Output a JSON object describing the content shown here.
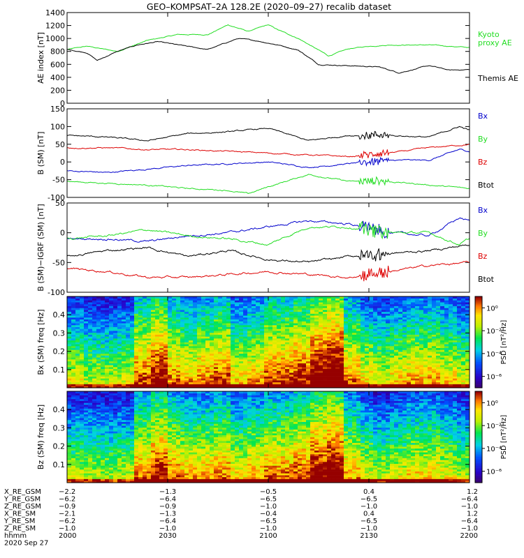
{
  "title": "GEO–KOMPSAT–2A 128.2E (2020–09–27) recalib dataset",
  "time_axis": {
    "ticks": [
      "2000",
      "2030",
      "2100",
      "2130",
      "2200"
    ],
    "hours": [
      20.0,
      20.5,
      21.0,
      21.5,
      22.0
    ],
    "range_hours": [
      20.0,
      22.0
    ],
    "date_label": "2020 Sep 27",
    "hhmm_label": "hhmm"
  },
  "ephemeris": [
    {
      "label": "X_RE_GSM",
      "values": [
        "−2.2",
        "−1.3",
        "−0.5",
        "0.4",
        "1.2"
      ]
    },
    {
      "label": "Y_RE_GSM",
      "values": [
        "−6.2",
        "−6.4",
        "−6.5",
        "−6.5",
        "−6.4"
      ]
    },
    {
      "label": "Z_RE_GSM",
      "values": [
        "−0.9",
        "−0.9",
        "−1.0",
        "−1.0",
        "−1.0"
      ]
    },
    {
      "label": "X_RE_SM",
      "values": [
        "−2.1",
        "−1.3",
        "−0.4",
        "0.4",
        "1.2"
      ]
    },
    {
      "label": "Y_RE_SM",
      "values": [
        "−6.2",
        "−6.4",
        "−6.5",
        "−6.5",
        "−6.4"
      ]
    },
    {
      "label": "Z_RE_SM",
      "values": [
        "−1.0",
        "−1.0",
        "−1.0",
        "−1.0",
        "−1.0"
      ]
    }
  ],
  "colors": {
    "black": "#000000",
    "red": "#dd0000",
    "green": "#22dd22",
    "blue": "#0000cc"
  },
  "chart_data": [
    {
      "type": "line",
      "ylabel": "AE index [nT]",
      "ylim": [
        0,
        1400
      ],
      "yticks": [
        0,
        200,
        400,
        600,
        800,
        1000,
        1200,
        1400
      ],
      "series": [
        {
          "name": "Kyoto proxy AE",
          "label_lines": [
            "Kyoto",
            "proxy AE"
          ],
          "color": "#22dd22",
          "x": [
            20.0,
            20.1,
            20.25,
            20.4,
            20.55,
            20.7,
            20.8,
            20.9,
            21.0,
            21.05,
            21.15,
            21.3,
            21.4,
            21.5,
            21.6,
            21.8,
            22.0
          ],
          "y": [
            830,
            880,
            800,
            970,
            1060,
            1060,
            1210,
            1110,
            1210,
            1130,
            1000,
            730,
            840,
            880,
            900,
            900,
            860
          ]
        },
        {
          "name": "Themis AE",
          "label_lines": [
            "Themis AE"
          ],
          "color": "#000000",
          "x": [
            20.0,
            20.1,
            20.15,
            20.25,
            20.35,
            20.45,
            20.55,
            20.7,
            20.85,
            20.95,
            21.05,
            21.15,
            21.25,
            21.4,
            21.55,
            21.65,
            21.8,
            21.9,
            22.0
          ],
          "y": [
            830,
            780,
            660,
            800,
            900,
            950,
            900,
            830,
            1000,
            960,
            900,
            820,
            600,
            580,
            560,
            470,
            580,
            510,
            520
          ]
        }
      ]
    },
    {
      "type": "line",
      "ylabel": "B (SM) [nT]",
      "ylim": [
        -100,
        150
      ],
      "yticks": [
        -100,
        -50,
        0,
        50,
        100,
        150
      ],
      "series": [
        {
          "name": "Bx",
          "color": "#0000cc",
          "x": [
            20.0,
            20.2,
            20.4,
            20.6,
            20.8,
            21.0,
            21.2,
            21.4,
            21.6,
            21.8,
            21.95,
            22.0
          ],
          "y": [
            -25,
            -30,
            -20,
            -10,
            -5,
            0,
            -15,
            -5,
            5,
            5,
            35,
            30
          ]
        },
        {
          "name": "By",
          "color": "#22dd22",
          "x": [
            20.0,
            20.2,
            20.4,
            20.6,
            20.8,
            20.9,
            21.0,
            21.2,
            21.4,
            21.6,
            21.8,
            22.0
          ],
          "y": [
            -55,
            -60,
            -65,
            -75,
            -80,
            -90,
            -70,
            -35,
            -55,
            -55,
            -65,
            -75
          ]
        },
        {
          "name": "Bz",
          "color": "#dd0000",
          "x": [
            20.0,
            20.2,
            20.4,
            20.6,
            20.8,
            21.0,
            21.2,
            21.4,
            21.6,
            21.8,
            22.0
          ],
          "y": [
            40,
            40,
            35,
            35,
            30,
            25,
            20,
            15,
            25,
            40,
            50
          ]
        },
        {
          "name": "Btot",
          "color": "#000000",
          "x": [
            20.0,
            20.2,
            20.4,
            20.6,
            20.8,
            21.0,
            21.2,
            21.4,
            21.6,
            21.8,
            21.95,
            22.0
          ],
          "y": [
            75,
            70,
            60,
            80,
            85,
            95,
            60,
            75,
            75,
            70,
            100,
            90
          ]
        }
      ]
    },
    {
      "type": "line",
      "ylabel": "B (SM)−IGRF (SM) [nT]",
      "ylim": [
        -100,
        50
      ],
      "yticks": [
        -100,
        -50,
        0,
        50
      ],
      "series": [
        {
          "name": "Bx",
          "color": "#0000cc",
          "x": [
            20.0,
            20.2,
            20.4,
            20.6,
            20.8,
            21.0,
            21.2,
            21.4,
            21.6,
            21.8,
            21.95,
            22.0
          ],
          "y": [
            -10,
            -10,
            -15,
            -5,
            0,
            10,
            20,
            15,
            0,
            -5,
            25,
            20
          ]
        },
        {
          "name": "By",
          "color": "#22dd22",
          "x": [
            20.0,
            20.2,
            20.4,
            20.6,
            20.8,
            21.0,
            21.2,
            21.4,
            21.6,
            21.8,
            21.95,
            22.0
          ],
          "y": [
            -10,
            -5,
            5,
            -5,
            -10,
            -20,
            10,
            10,
            0,
            0,
            -20,
            -10
          ]
        },
        {
          "name": "Bz",
          "color": "#dd0000",
          "x": [
            20.0,
            20.2,
            20.4,
            20.6,
            20.8,
            21.0,
            21.2,
            21.4,
            21.6,
            21.8,
            22.0
          ],
          "y": [
            -60,
            -65,
            -75,
            -75,
            -70,
            -65,
            -70,
            -75,
            -65,
            -55,
            -50
          ]
        },
        {
          "name": "Btot",
          "color": "#000000",
          "x": [
            20.0,
            20.2,
            20.4,
            20.6,
            20.8,
            21.0,
            21.2,
            21.4,
            21.6,
            21.8,
            22.0
          ],
          "y": [
            -40,
            -30,
            -25,
            -40,
            -30,
            -45,
            -50,
            -40,
            -35,
            -30,
            -20
          ]
        }
      ]
    },
    {
      "type": "heatmap",
      "ylabel": "Bx (SM) freq [Hz]",
      "ylim": [
        0,
        0.5
      ],
      "yticks": [
        0.1,
        0.2,
        0.3,
        0.4
      ],
      "colorbar": {
        "label": "PSD [nT²/Hz]",
        "ticks": [
          "10⁰",
          "10⁻²",
          "10⁻⁴",
          "10⁻⁶"
        ],
        "log_range": [
          -7,
          1
        ]
      },
      "column_activity": [
        0.35,
        0.3,
        0.3,
        0.32,
        0.55,
        0.65,
        0.5,
        0.45,
        0.5,
        0.55,
        0.4,
        0.45,
        0.55,
        0.55,
        0.6,
        0.7,
        0.75,
        0.5,
        0.4,
        0.35,
        0.4,
        0.45,
        0.45,
        0.4,
        0.35
      ]
    },
    {
      "type": "heatmap",
      "ylabel": "Bz (SM) freq [Hz]",
      "ylim": [
        0,
        0.5
      ],
      "yticks": [
        0.1,
        0.2,
        0.3,
        0.4
      ],
      "colorbar": {
        "label": "PSD [nT²/Hz]",
        "ticks": [
          "10⁰",
          "10⁻²",
          "10⁻⁴",
          "10⁻⁶"
        ],
        "log_range": [
          -7,
          1
        ]
      },
      "column_activity": [
        0.3,
        0.3,
        0.28,
        0.3,
        0.5,
        0.6,
        0.5,
        0.45,
        0.45,
        0.5,
        0.4,
        0.45,
        0.5,
        0.5,
        0.55,
        0.65,
        0.7,
        0.45,
        0.35,
        0.3,
        0.35,
        0.4,
        0.4,
        0.35,
        0.3
      ]
    }
  ]
}
